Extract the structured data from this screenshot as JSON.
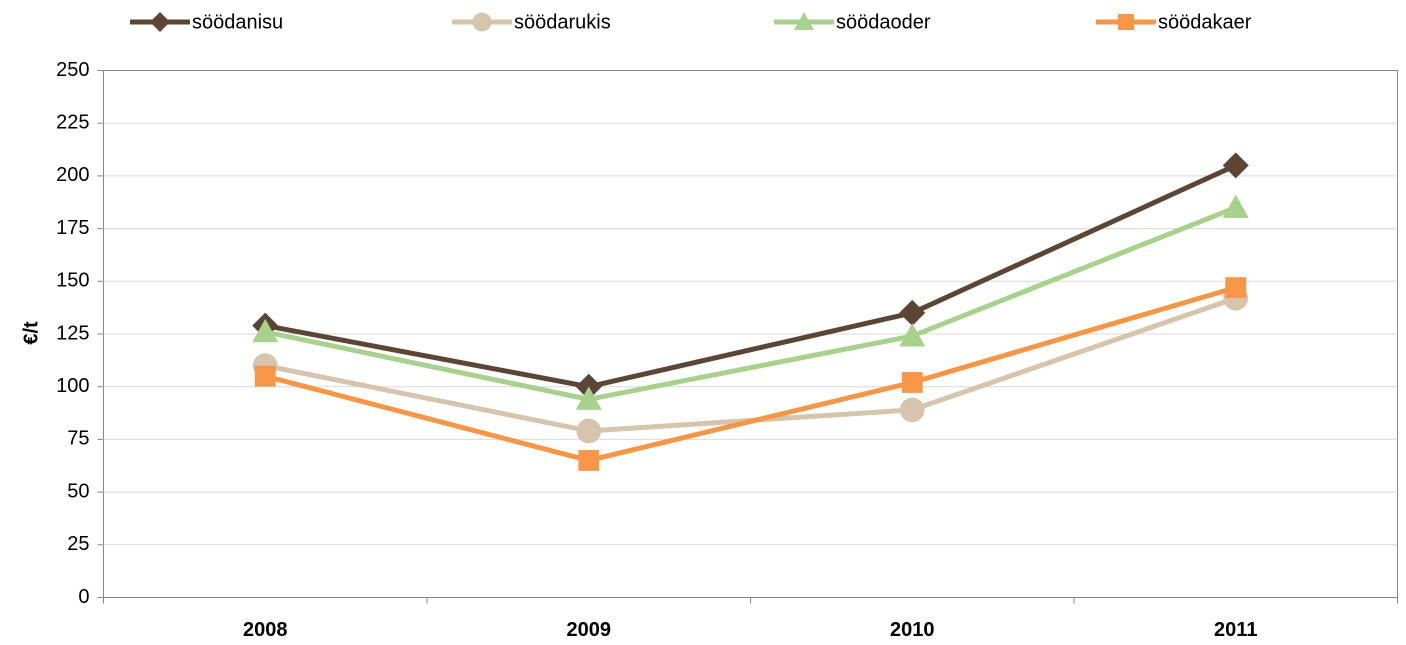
{
  "chart_data": {
    "type": "line",
    "y_label": "€/t",
    "categories": [
      "2008",
      "2009",
      "2010",
      "2011"
    ],
    "series": [
      {
        "name": "söödanisu",
        "color": "#5b4636",
        "marker": "diamond",
        "values": [
          129,
          100,
          135,
          205
        ]
      },
      {
        "name": "söödarukis",
        "color": "#d6c4ad",
        "marker": "circle",
        "values": [
          110,
          79,
          89,
          142
        ]
      },
      {
        "name": "söödaoder",
        "color": "#a9d18e",
        "marker": "triangle",
        "values": [
          126,
          94,
          124,
          185
        ]
      },
      {
        "name": "söödakaer",
        "color": "#f79646",
        "marker": "square",
        "values": [
          105,
          65,
          102,
          147
        ]
      }
    ],
    "ylim": [
      0,
      250
    ],
    "yticks": [
      0,
      25,
      50,
      75,
      100,
      125,
      150,
      175,
      200,
      225,
      250
    ],
    "grid": true,
    "legend": "top"
  }
}
